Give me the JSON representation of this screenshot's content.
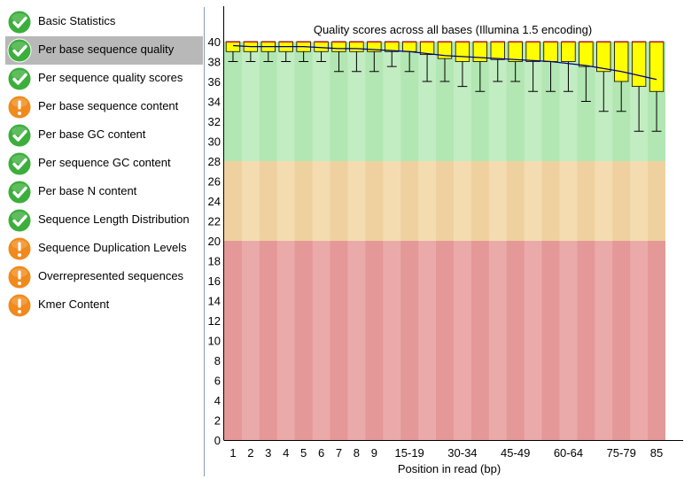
{
  "modules": [
    {
      "label": "Basic Statistics",
      "status": "pass",
      "icon": "check-icon"
    },
    {
      "label": "Per base sequence quality",
      "status": "pass",
      "icon": "check-icon",
      "selected": true
    },
    {
      "label": "Per sequence quality scores",
      "status": "pass",
      "icon": "check-icon"
    },
    {
      "label": "Per base sequence content",
      "status": "warn",
      "icon": "warning-icon"
    },
    {
      "label": "Per base GC content",
      "status": "pass",
      "icon": "check-icon"
    },
    {
      "label": "Per sequence GC content",
      "status": "pass",
      "icon": "check-icon"
    },
    {
      "label": "Per base N content",
      "status": "pass",
      "icon": "check-icon"
    },
    {
      "label": "Sequence Length Distribution",
      "status": "pass",
      "icon": "check-icon"
    },
    {
      "label": "Sequence Duplication Levels",
      "status": "warn",
      "icon": "warning-icon"
    },
    {
      "label": "Overrepresented sequences",
      "status": "warn",
      "icon": "warning-icon"
    },
    {
      "label": "Kmer Content",
      "status": "warn",
      "icon": "warning-icon"
    }
  ],
  "colors": {
    "pass": "#3cae3c",
    "warn": "#f08a1c",
    "selected_bg": "#b8b8b8",
    "band_good": "#c2ecc2",
    "band_good_alt": "#b2e6b2",
    "band_ok": "#f4dcb0",
    "band_ok_alt": "#efd1a0",
    "band_bad": "#ebaaaa",
    "band_bad_alt": "#e49898",
    "box": "#ffff00",
    "median": "#ff0000",
    "mean": "#000080"
  },
  "chart_data": {
    "type": "boxplot",
    "title": "Quality scores across all bases (Illumina 1.5 encoding)",
    "xlabel": "Position in read (bp)",
    "ylim": [
      0,
      40
    ],
    "yticks": [
      0,
      2,
      4,
      6,
      8,
      10,
      12,
      14,
      16,
      18,
      20,
      22,
      24,
      26,
      28,
      30,
      32,
      34,
      36,
      38,
      40
    ],
    "quality_bands": [
      {
        "name": "good",
        "from": 28,
        "to": 40
      },
      {
        "name": "reasonable",
        "from": 20,
        "to": 28
      },
      {
        "name": "poor",
        "from": 0,
        "to": 20
      }
    ],
    "categories": [
      "1",
      "2",
      "3",
      "4",
      "5",
      "6",
      "7",
      "8",
      "9",
      "10-14",
      "15-19",
      "20-24",
      "25-29",
      "30-34",
      "35-39",
      "40-44",
      "45-49",
      "50-54",
      "55-59",
      "60-64",
      "65-69",
      "70-74",
      "75-79",
      "80-84",
      "85"
    ],
    "xtick_labels": [
      "1",
      "2",
      "3",
      "4",
      "5",
      "6",
      "7",
      "8",
      "9",
      "",
      "15-19",
      "",
      "30-34",
      "",
      "45-49",
      "",
      "60-64",
      "",
      "75-79",
      "",
      "85"
    ],
    "xtick_categories": [
      "1",
      "2",
      "3",
      "4",
      "5",
      "6",
      "7",
      "8",
      "9",
      "",
      "15-19",
      "",
      "30-34",
      "",
      "45-49",
      "",
      "60-64",
      "",
      "75-79",
      "",
      "85"
    ],
    "xticks_shown": [
      {
        "category": "1",
        "label": "1"
      },
      {
        "category": "2",
        "label": "2"
      },
      {
        "category": "3",
        "label": "3"
      },
      {
        "category": "4",
        "label": "4"
      },
      {
        "category": "5",
        "label": "5"
      },
      {
        "category": "6",
        "label": "6"
      },
      {
        "category": "7",
        "label": "7"
      },
      {
        "category": "8",
        "label": "8"
      },
      {
        "category": "9",
        "label": "9"
      },
      {
        "category": "15-19",
        "label": "15-19"
      },
      {
        "category": "30-34",
        "label": "30-34"
      },
      {
        "category": "45-49",
        "label": "45-49"
      },
      {
        "category": "60-64",
        "label": "60-64"
      },
      {
        "category": "75-79",
        "label": "75-79"
      },
      {
        "category": "85",
        "label": "85"
      }
    ],
    "boxes": [
      {
        "lower_whisker": 38,
        "q1": 39,
        "median": 40,
        "q3": 40,
        "upper_whisker": 40
      },
      {
        "lower_whisker": 38,
        "q1": 39,
        "median": 40,
        "q3": 40,
        "upper_whisker": 40
      },
      {
        "lower_whisker": 38,
        "q1": 39,
        "median": 40,
        "q3": 40,
        "upper_whisker": 40
      },
      {
        "lower_whisker": 38,
        "q1": 39,
        "median": 40,
        "q3": 40,
        "upper_whisker": 40
      },
      {
        "lower_whisker": 38,
        "q1": 39,
        "median": 40,
        "q3": 40,
        "upper_whisker": 40
      },
      {
        "lower_whisker": 38,
        "q1": 39,
        "median": 40,
        "q3": 40,
        "upper_whisker": 40
      },
      {
        "lower_whisker": 37,
        "q1": 39,
        "median": 40,
        "q3": 40,
        "upper_whisker": 40
      },
      {
        "lower_whisker": 37,
        "q1": 39,
        "median": 40,
        "q3": 40,
        "upper_whisker": 40
      },
      {
        "lower_whisker": 37,
        "q1": 39,
        "median": 40,
        "q3": 40,
        "upper_whisker": 40
      },
      {
        "lower_whisker": 37.5,
        "q1": 39,
        "median": 40,
        "q3": 40,
        "upper_whisker": 40
      },
      {
        "lower_whisker": 37,
        "q1": 39,
        "median": 40,
        "q3": 40,
        "upper_whisker": 40
      },
      {
        "lower_whisker": 36,
        "q1": 38.7,
        "median": 40,
        "q3": 40,
        "upper_whisker": 40
      },
      {
        "lower_whisker": 36,
        "q1": 38.3,
        "median": 40,
        "q3": 40,
        "upper_whisker": 40
      },
      {
        "lower_whisker": 35.5,
        "q1": 38,
        "median": 40,
        "q3": 40,
        "upper_whisker": 40
      },
      {
        "lower_whisker": 35,
        "q1": 38,
        "median": 40,
        "q3": 40,
        "upper_whisker": 40
      },
      {
        "lower_whisker": 36,
        "q1": 38.2,
        "median": 40,
        "q3": 40,
        "upper_whisker": 40
      },
      {
        "lower_whisker": 36,
        "q1": 38,
        "median": 40,
        "q3": 40,
        "upper_whisker": 40
      },
      {
        "lower_whisker": 35,
        "q1": 38,
        "median": 40,
        "q3": 40,
        "upper_whisker": 40
      },
      {
        "lower_whisker": 35,
        "q1": 38,
        "median": 40,
        "q3": 40,
        "upper_whisker": 40
      },
      {
        "lower_whisker": 35,
        "q1": 38,
        "median": 40,
        "q3": 40,
        "upper_whisker": 40
      },
      {
        "lower_whisker": 34,
        "q1": 37.5,
        "median": 40,
        "q3": 40,
        "upper_whisker": 40
      },
      {
        "lower_whisker": 33,
        "q1": 37,
        "median": 40,
        "q3": 40,
        "upper_whisker": 40
      },
      {
        "lower_whisker": 33,
        "q1": 36,
        "median": 40,
        "q3": 40,
        "upper_whisker": 40
      },
      {
        "lower_whisker": 31,
        "q1": 35.5,
        "median": 40,
        "q3": 40,
        "upper_whisker": 40
      },
      {
        "lower_whisker": 31,
        "q1": 35,
        "median": 40,
        "q3": 40,
        "upper_whisker": 40
      }
    ],
    "mean": [
      39.6,
      39.5,
      39.5,
      39.5,
      39.5,
      39.4,
      39.3,
      39.3,
      39.2,
      39.1,
      39.0,
      38.8,
      38.6,
      38.5,
      38.4,
      38.3,
      38.2,
      38.1,
      38.0,
      37.8,
      37.6,
      37.3,
      37.0,
      36.6,
      36.2
    ],
    "grid": false
  }
}
